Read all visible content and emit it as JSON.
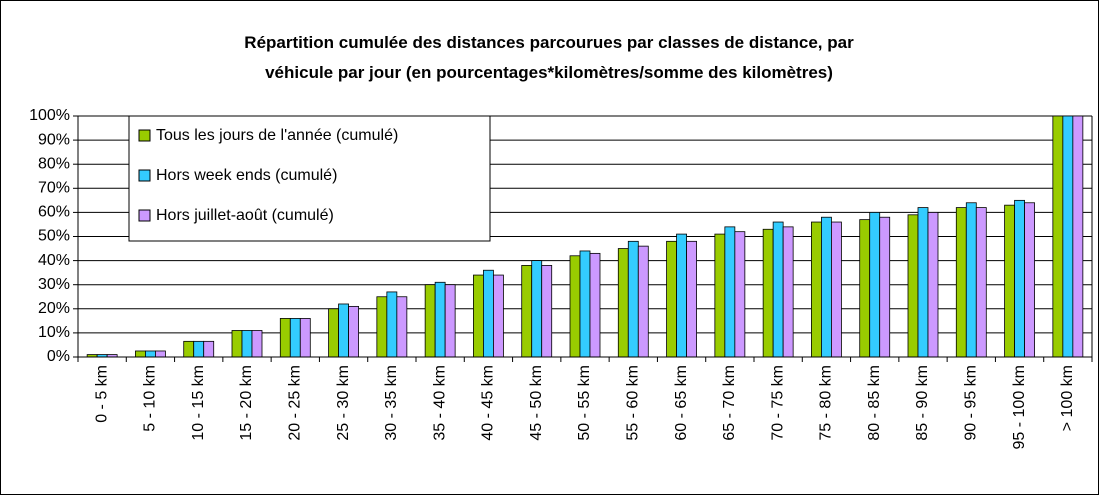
{
  "chart_data": {
    "type": "bar",
    "title": "Répartition cumulée des distances parcourues par classes de distance, par véhicule par jour (en pourcentages*kilomètres/somme des kilomètres)",
    "categories": [
      "0 - 5 km",
      "5 - 10 km",
      "10 - 15 km",
      "15 - 20 km",
      "20 - 25 km",
      "25 - 30 km",
      "30 - 35 km",
      "35 - 40 km",
      "40 - 45 km",
      "45 - 50 km",
      "50 - 55 km",
      "55 - 60 km",
      "60 - 65 km",
      "65 - 70 km",
      "70 - 75 km",
      "75 - 80 km",
      "80 - 85 km",
      "85 - 90 km",
      "90 - 95 km",
      "95 - 100 km",
      "> 100 km"
    ],
    "series": [
      {
        "name": "Tous les jours de l'année (cumulé)",
        "color": "#99cc00",
        "values": [
          1,
          2.5,
          6.5,
          11,
          16,
          20,
          25,
          30,
          34,
          38,
          42,
          45,
          48,
          51,
          53,
          56,
          57,
          59,
          62,
          63,
          100
        ]
      },
      {
        "name": "Hors week ends (cumulé)",
        "color": "#33ccff",
        "values": [
          1,
          2.5,
          6.5,
          11,
          16,
          22,
          27,
          31,
          36,
          40,
          44,
          48,
          51,
          54,
          56,
          58,
          60,
          62,
          64,
          65,
          100
        ]
      },
      {
        "name": "Hors juillet-août (cumulé)",
        "color": "#cc99ff",
        "values": [
          1,
          2.5,
          6.5,
          11,
          16,
          21,
          25,
          30,
          34,
          38,
          43,
          46,
          48,
          52,
          54,
          56,
          58,
          60,
          62,
          64,
          100
        ]
      }
    ],
    "ylim": [
      0,
      100
    ],
    "yticks": [
      {
        "value": 0,
        "label": "0%"
      },
      {
        "value": 10,
        "label": "10%"
      },
      {
        "value": 20,
        "label": "20%"
      },
      {
        "value": 30,
        "label": "30%"
      },
      {
        "value": 40,
        "label": "40%"
      },
      {
        "value": 50,
        "label": "50%"
      },
      {
        "value": 60,
        "label": "60%"
      },
      {
        "value": 70,
        "label": "70%"
      },
      {
        "value": 80,
        "label": "80%"
      },
      {
        "value": 90,
        "label": "90%"
      },
      {
        "value": 100,
        "label": "100%"
      }
    ],
    "grid": true,
    "legend": "upper left"
  }
}
